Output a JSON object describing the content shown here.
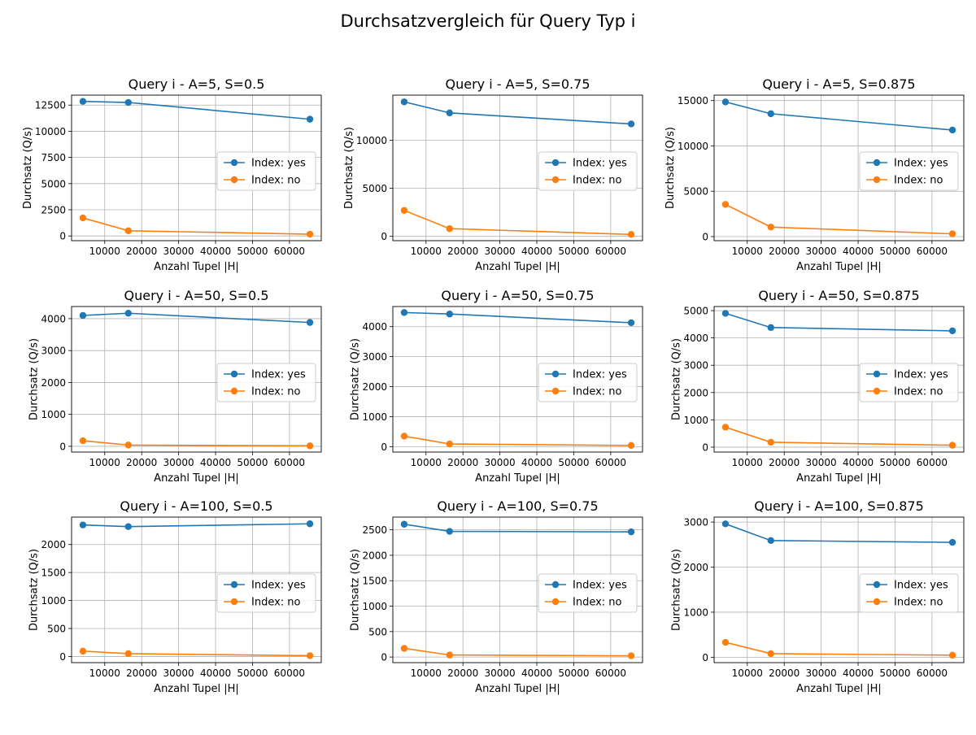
{
  "figure": {
    "title": "Durchsatzvergleich für Query Typ i"
  },
  "colors": {
    "index_yes": "#1f77b4",
    "index_no": "#ff7f0e",
    "grid": "#b0b0b0"
  },
  "chart_data": [
    {
      "type": "line",
      "title": "Query i - A=5, S=0.5",
      "xlabel": "Anzahl Tupel |H|",
      "ylabel": "Durchsatz (Q/s)",
      "x": [
        4096,
        16384,
        65536
      ],
      "xticks": [
        10000,
        20000,
        30000,
        40000,
        50000,
        60000
      ],
      "yticks": [
        0,
        2500,
        5000,
        7500,
        10000,
        12500
      ],
      "ylim": [
        -450,
        13450
      ],
      "legend_position": "center-right",
      "grid": true,
      "series": [
        {
          "name": "Index: yes",
          "values": [
            12850,
            12750,
            11150
          ]
        },
        {
          "name": "Index: no",
          "values": [
            1720,
            500,
            170
          ]
        }
      ]
    },
    {
      "type": "line",
      "title": "Query i - A=5, S=0.75",
      "xlabel": "Anzahl Tupel |H|",
      "ylabel": "Durchsatz (Q/s)",
      "x": [
        4096,
        16384,
        65536
      ],
      "xticks": [
        10000,
        20000,
        30000,
        40000,
        50000,
        60000
      ],
      "yticks": [
        0,
        5000,
        10000
      ],
      "ylim": [
        -450,
        14700
      ],
      "legend_position": "center-right",
      "grid": true,
      "series": [
        {
          "name": "Index: yes",
          "values": [
            14000,
            12850,
            11700
          ]
        },
        {
          "name": "Index: no",
          "values": [
            2700,
            800,
            200
          ]
        }
      ]
    },
    {
      "type": "line",
      "title": "Query i - A=5, S=0.875",
      "xlabel": "Anzahl Tupel |H|",
      "ylabel": "Durchsatz (Q/s)",
      "x": [
        4096,
        16384,
        65536
      ],
      "xticks": [
        10000,
        20000,
        30000,
        40000,
        50000,
        60000
      ],
      "yticks": [
        0,
        5000,
        10000,
        15000
      ],
      "ylim": [
        -450,
        15600
      ],
      "legend_position": "center-right",
      "grid": true,
      "series": [
        {
          "name": "Index: yes",
          "values": [
            14850,
            13550,
            11750
          ]
        },
        {
          "name": "Index: no",
          "values": [
            3550,
            1050,
            300
          ]
        }
      ]
    },
    {
      "type": "line",
      "title": "Query i - A=50, S=0.5",
      "xlabel": "Anzahl Tupel |H|",
      "ylabel": "Durchsatz (Q/s)",
      "x": [
        4096,
        16384,
        65536
      ],
      "xticks": [
        10000,
        20000,
        30000,
        40000,
        50000,
        60000
      ],
      "yticks": [
        0,
        1000,
        2000,
        3000,
        4000
      ],
      "ylim": [
        -180,
        4380
      ],
      "legend_position": "center-right",
      "grid": true,
      "series": [
        {
          "name": "Index: yes",
          "values": [
            4100,
            4170,
            3880
          ]
        },
        {
          "name": "Index: no",
          "values": [
            175,
            40,
            15
          ]
        }
      ]
    },
    {
      "type": "line",
      "title": "Query i - A=50, S=0.75",
      "xlabel": "Anzahl Tupel |H|",
      "ylabel": "Durchsatz (Q/s)",
      "x": [
        4096,
        16384,
        65536
      ],
      "xticks": [
        10000,
        20000,
        30000,
        40000,
        50000,
        60000
      ],
      "yticks": [
        0,
        1000,
        2000,
        3000,
        4000
      ],
      "ylim": [
        -180,
        4670
      ],
      "legend_position": "center-right",
      "grid": true,
      "series": [
        {
          "name": "Index: yes",
          "values": [
            4470,
            4420,
            4130
          ]
        },
        {
          "name": "Index: no",
          "values": [
            350,
            90,
            40
          ]
        }
      ]
    },
    {
      "type": "line",
      "title": "Query i - A=50, S=0.875",
      "xlabel": "Anzahl Tupel |H|",
      "ylabel": "Durchsatz (Q/s)",
      "x": [
        4096,
        16384,
        65536
      ],
      "xticks": [
        10000,
        20000,
        30000,
        40000,
        50000,
        60000
      ],
      "yticks": [
        0,
        1000,
        2000,
        3000,
        4000,
        5000
      ],
      "ylim": [
        -180,
        5150
      ],
      "legend_position": "center-right",
      "grid": true,
      "series": [
        {
          "name": "Index: yes",
          "values": [
            4900,
            4380,
            4260
          ]
        },
        {
          "name": "Index: no",
          "values": [
            730,
            180,
            70
          ]
        }
      ]
    },
    {
      "type": "line",
      "title": "Query i - A=100, S=0.5",
      "xlabel": "Anzahl Tupel |H|",
      "ylabel": "Durchsatz (Q/s)",
      "x": [
        4096,
        16384,
        65536
      ],
      "xticks": [
        10000,
        20000,
        30000,
        40000,
        50000,
        60000
      ],
      "yticks": [
        0,
        500,
        1000,
        1500,
        2000
      ],
      "ylim": [
        -110,
        2490
      ],
      "legend_position": "center-right",
      "grid": true,
      "series": [
        {
          "name": "Index: yes",
          "values": [
            2350,
            2320,
            2370
          ]
        },
        {
          "name": "Index: no",
          "values": [
            95,
            50,
            15
          ]
        }
      ]
    },
    {
      "type": "line",
      "title": "Query i - A=100, S=0.75",
      "xlabel": "Anzahl Tupel |H|",
      "ylabel": "Durchsatz (Q/s)",
      "x": [
        4096,
        16384,
        65536
      ],
      "xticks": [
        10000,
        20000,
        30000,
        40000,
        50000,
        60000
      ],
      "yticks": [
        0,
        500,
        1000,
        1500,
        2000,
        2500
      ],
      "ylim": [
        -110,
        2750
      ],
      "legend_position": "center-right",
      "grid": true,
      "series": [
        {
          "name": "Index: yes",
          "values": [
            2610,
            2470,
            2460
          ]
        },
        {
          "name": "Index: no",
          "values": [
            170,
            40,
            25
          ]
        }
      ]
    },
    {
      "type": "line",
      "title": "Query i - A=100, S=0.875",
      "xlabel": "Anzahl Tupel |H|",
      "ylabel": "Durchsatz (Q/s)",
      "x": [
        4096,
        16384,
        65536
      ],
      "xticks": [
        10000,
        20000,
        30000,
        40000,
        50000,
        60000
      ],
      "yticks": [
        0,
        1000,
        2000,
        3000
      ],
      "ylim": [
        -120,
        3110
      ],
      "legend_position": "center-right",
      "grid": true,
      "series": [
        {
          "name": "Index: yes",
          "values": [
            2960,
            2590,
            2550
          ]
        },
        {
          "name": "Index: no",
          "values": [
            330,
            80,
            45
          ]
        }
      ]
    }
  ]
}
